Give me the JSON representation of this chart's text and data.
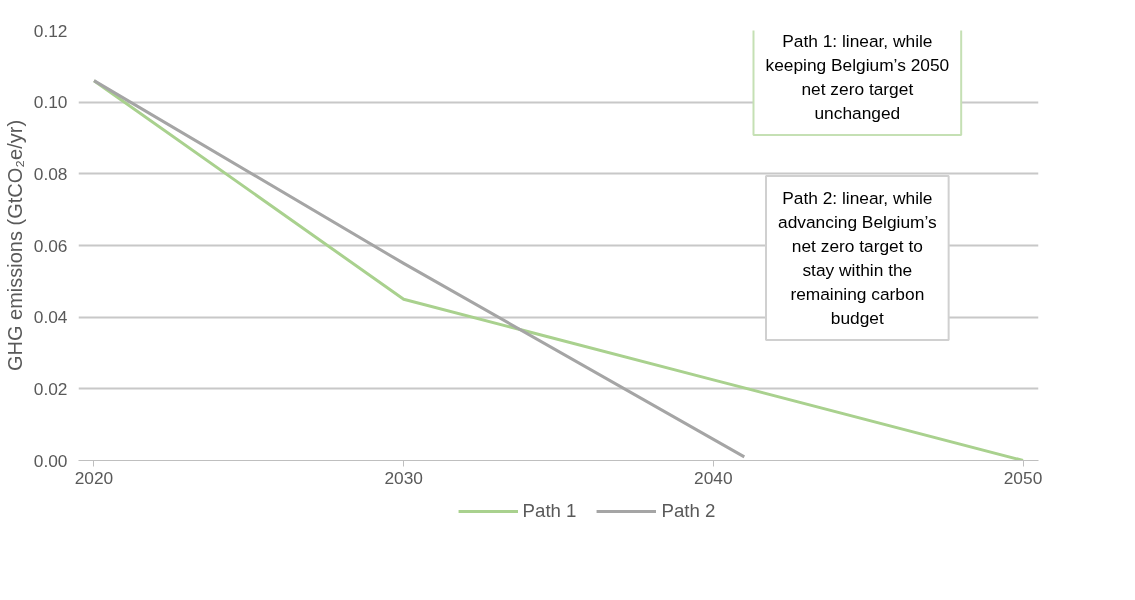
{
  "chart_data": {
    "type": "line",
    "ylabel": "GHG emissions (GtCO₂e/yr)",
    "xlim": [
      2019.5,
      2050.5
    ],
    "xticks": [
      2020,
      2030,
      2040,
      2050
    ],
    "ylim": [
      0,
      0.12
    ],
    "yticks": [
      {
        "value": 0,
        "label": "0.00"
      },
      {
        "value": 0.02,
        "label": "0.02"
      },
      {
        "value": 0.04,
        "label": "0.04"
      },
      {
        "value": 0.06,
        "label": "0.06"
      },
      {
        "value": 0.08,
        "label": "0.08"
      },
      {
        "value": 0.1,
        "label": "0.10"
      },
      {
        "value": 0.12,
        "label": "0.12"
      }
    ],
    "series": [
      {
        "name": "Path 1",
        "color": "#a9d18e",
        "x": [
          2020,
          2030,
          2040,
          2050
        ],
        "values": [
          0.106,
          0.045,
          0.0225,
          0
        ]
      },
      {
        "name": "Path 2",
        "color": "#a5a5a5",
        "x": [
          2020,
          2030,
          2041
        ],
        "values": [
          0.106,
          0.055,
          0.001
        ]
      }
    ],
    "annotations": [
      "Path 1: linear, while keeping Belgium’s 2050 net zero target unchanged",
      "Path 2: linear, while advancing Belgium’s net zero target to stay within the remaining carbon budget"
    ],
    "grid": "y",
    "legend": "bottom",
    "line_style": "solid",
    "marker": "none"
  }
}
